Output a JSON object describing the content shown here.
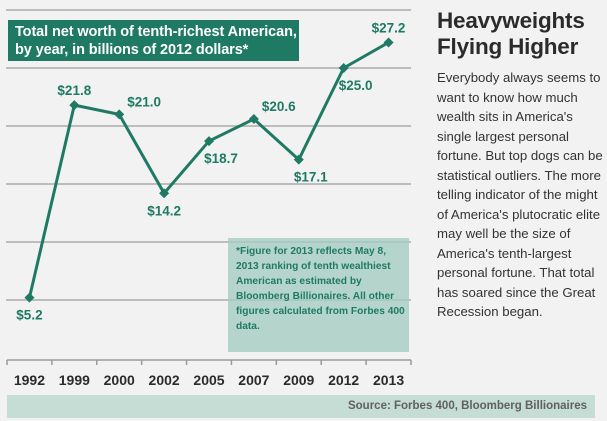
{
  "sidebar": {
    "title_line1": "Heavyweights",
    "title_line2": "Flying Higher",
    "body": "Everybody always seems to want to know how much wealth sits in America's single largest personal fortune. But top dogs can be statistical outliers. The more telling indicator of the might of America's plutocratic elite may well be the size of America's tenth-largest personal fortune. That total has soared since the Great Recession began."
  },
  "footnote": "*Figure for 2013 reflects May 8, 2013 ranking of tenth wealthiest American as estimated by Bloomberg Billionaires. All other figures calculated from Forbes 400 data.",
  "source": "Source: Forbes 400, Bloomberg Billionaires",
  "colors": {
    "accent": "#1f7a64",
    "background": "#f2f2f2",
    "footnote_bg": "#b5d4ca",
    "source_bg": "#c6ddd5",
    "grid": "#bdbdbd"
  },
  "chart_data": {
    "type": "line",
    "title": "Total net worth of tenth-richest American, by year, in billions of 2012 dollars*",
    "title_line1": "Total net worth of tenth-richest American,",
    "title_line2": "by year, in billions of 2012 dollars*",
    "xlabel": "",
    "ylabel": "",
    "categories": [
      "1992",
      "1999",
      "2000",
      "2002",
      "2005",
      "2007",
      "2009",
      "2012",
      "2013"
    ],
    "values": [
      5.2,
      21.8,
      21.0,
      14.2,
      18.7,
      20.6,
      17.1,
      25.0,
      27.2
    ],
    "data_labels": [
      "$5.2",
      "$21.8",
      "$21.0",
      "$14.2",
      "$18.7",
      "$20.6",
      "$17.1",
      "$25.0",
      "$27.2"
    ],
    "label_positions": [
      "below",
      "above",
      "right",
      "below",
      "below",
      "right",
      "below",
      "below",
      "above"
    ],
    "ylim": [
      0,
      30
    ],
    "gridlines": [
      5,
      10,
      15,
      20,
      25,
      30
    ],
    "grid": true,
    "marker": "diamond",
    "legend": "none"
  }
}
